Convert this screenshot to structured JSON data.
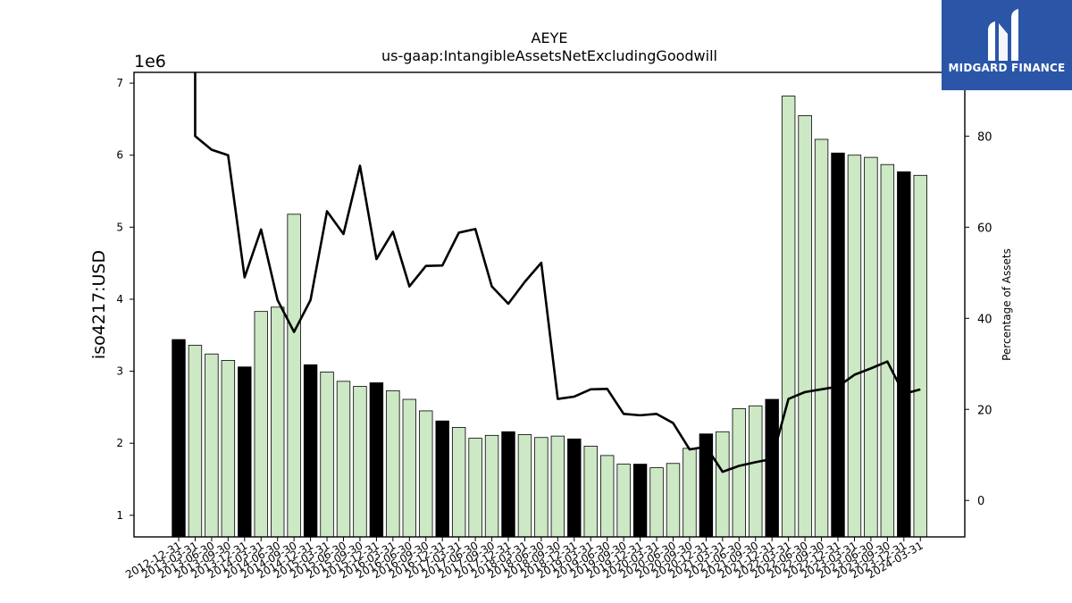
{
  "chart_data": {
    "type": "bar",
    "title": "AEYE",
    "subtitle": "us-gaap:IntangibleAssetsNetExcludingGoodwill",
    "ylabel": "iso4217:USD",
    "y_offset_label": "1e6",
    "y2label": "Percentage of Assets",
    "ylim": [
      0.7,
      7.15
    ],
    "y_scale_factor": 1000000,
    "y_ticks": [
      1,
      2,
      3,
      4,
      5,
      6,
      7
    ],
    "y2lim": [
      -8,
      94
    ],
    "y2_ticks": [
      0,
      20,
      40,
      60,
      80
    ],
    "grid": false,
    "categories": [
      "2012-12-31",
      "2013-03-31",
      "2013-06-30",
      "2013-09-30",
      "2013-12-31",
      "2014-03-31",
      "2014-06-30",
      "2014-09-30",
      "2014-12-31",
      "2015-03-31",
      "2015-06-30",
      "2015-09-30",
      "2015-12-31",
      "2016-03-31",
      "2016-06-30",
      "2016-09-30",
      "2016-12-31",
      "2017-03-31",
      "2017-06-30",
      "2017-09-30",
      "2017-12-31",
      "2018-03-31",
      "2018-06-30",
      "2018-09-30",
      "2018-12-31",
      "2019-03-31",
      "2019-06-30",
      "2019-09-30",
      "2019-12-31",
      "2020-03-31",
      "2020-06-30",
      "2020-09-30",
      "2020-12-31",
      "2021-03-31",
      "2021-06-30",
      "2021-09-30",
      "2021-12-31",
      "2022-03-31",
      "2022-06-30",
      "2022-09-30",
      "2022-12-31",
      "2023-03-31",
      "2023-06-30",
      "2023-09-30",
      "2023-12-31",
      "2024-03-31"
    ],
    "series": [
      {
        "kind": "bar",
        "values": [
          3.44,
          3.36,
          3.24,
          3.15,
          3.06,
          3.83,
          3.89,
          5.18,
          3.09,
          2.99,
          2.86,
          2.79,
          2.84,
          2.73,
          2.61,
          2.45,
          2.31,
          2.22,
          2.07,
          2.11,
          2.16,
          2.12,
          2.08,
          2.1,
          2.06,
          1.96,
          1.83,
          1.71,
          1.71,
          1.66,
          1.72,
          1.93,
          2.13,
          2.16,
          2.48,
          2.52,
          2.61,
          6.82,
          6.55,
          6.22,
          6.03,
          6.0,
          5.97,
          5.87,
          5.77,
          5.72
        ],
        "highlight": [
          true,
          false,
          false,
          false,
          true,
          false,
          false,
          false,
          true,
          false,
          false,
          false,
          true,
          false,
          false,
          false,
          true,
          false,
          false,
          false,
          true,
          false,
          false,
          false,
          true,
          false,
          false,
          false,
          true,
          false,
          false,
          false,
          true,
          false,
          false,
          false,
          true,
          false,
          false,
          false,
          true,
          false,
          false,
          false,
          true,
          false
        ]
      },
      {
        "kind": "line",
        "axis": "right",
        "values": [
          null,
          80.0,
          77.0,
          75.8,
          49.0,
          59.5,
          44.0,
          37.0,
          44.0,
          63.5,
          58.5,
          73.5,
          53.0,
          59.0,
          47.0,
          51.5,
          51.6,
          58.8,
          59.6,
          47.0,
          43.2,
          48.0,
          52.2,
          22.3,
          22.8,
          24.4,
          24.5,
          19.0,
          18.7,
          19.0,
          17.0,
          11.2,
          11.8,
          6.3,
          7.6,
          8.4,
          9.1,
          22.3,
          23.8,
          24.4,
          25.0,
          27.6,
          29.0,
          30.5,
          23.4,
          24.4
        ],
        "start_above_axis": true
      }
    ],
    "colors": {
      "bar": "#cce8c4",
      "bar_highlight": "#000000",
      "edge": "#000000",
      "line": "#000000"
    }
  },
  "logo": {
    "text": "MIDGARD FINANCE",
    "icon": "midgard-logo-icon"
  }
}
